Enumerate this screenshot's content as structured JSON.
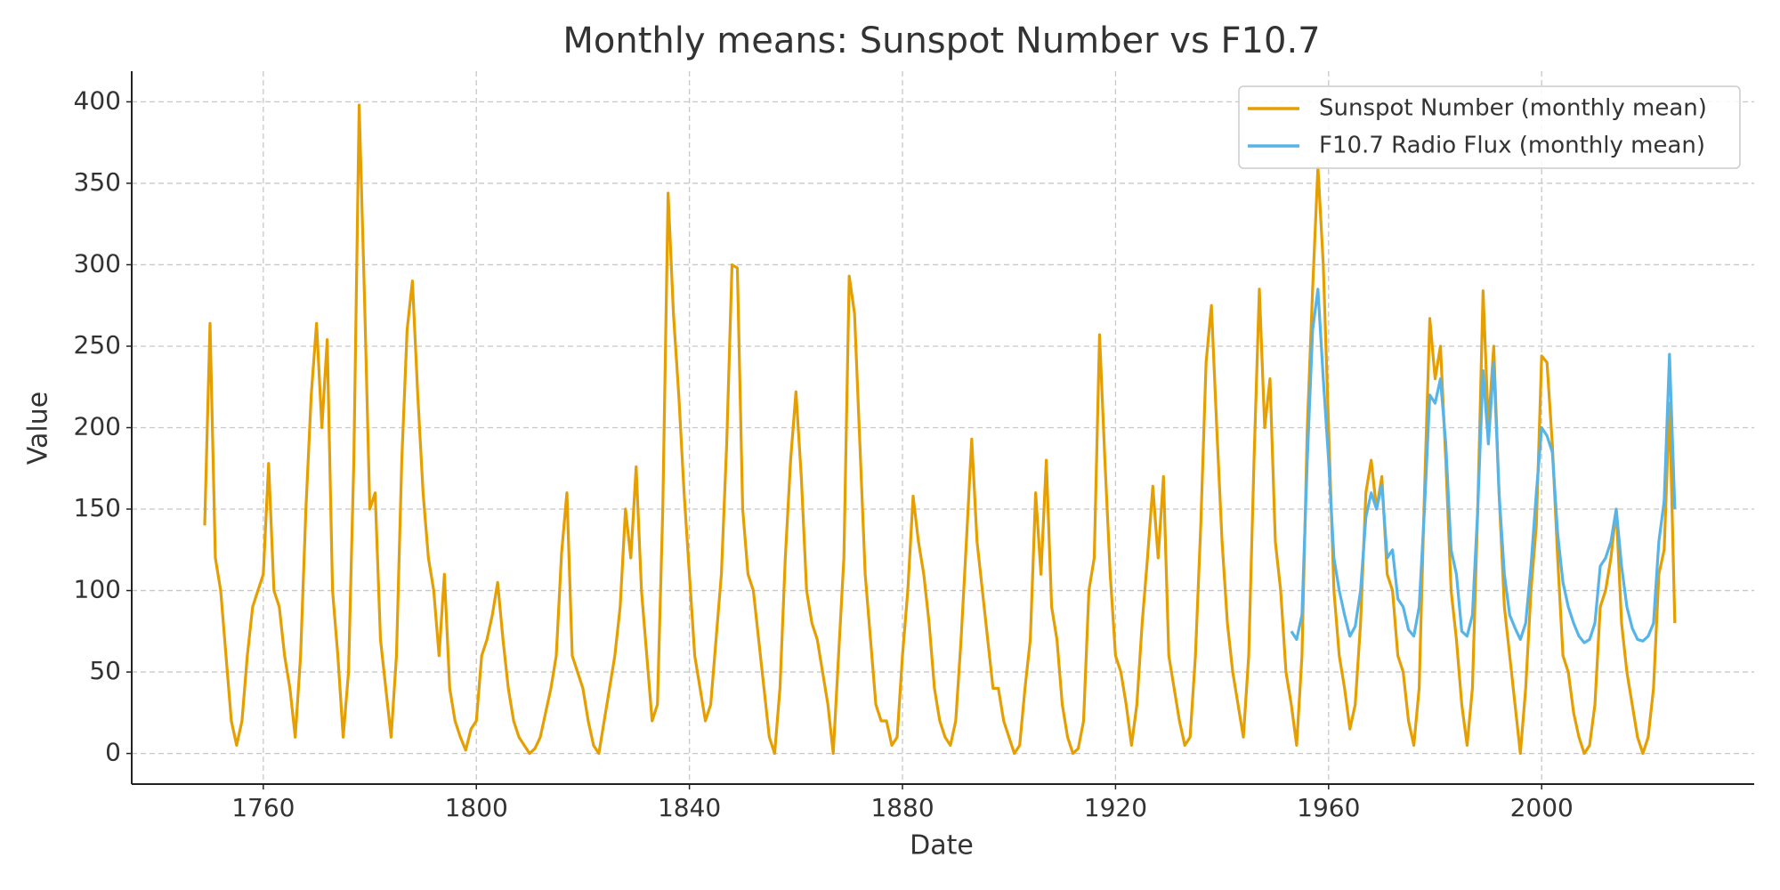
{
  "chart_data": {
    "type": "line",
    "title": "Monthly means: Sunspot Number vs F10.7",
    "x_label": "Date",
    "y_label": "Value",
    "xlim": [
      1735.3,
      2039.9
    ],
    "ylim": [
      -18.8,
      418.8
    ],
    "xticks": [
      1760,
      1800,
      1840,
      1880,
      1920,
      1960,
      2000
    ],
    "yticks": [
      0,
      50,
      100,
      150,
      200,
      250,
      300,
      350,
      400
    ],
    "grid": true,
    "legend": "upper right",
    "series": [
      {
        "name": "Sunspot Number (monthly mean)",
        "color": "#E69F00",
        "x": [
          1749,
          1750,
          1751,
          1752,
          1753,
          1754,
          1755,
          1756,
          1757,
          1758,
          1759,
          1760,
          1761,
          1762,
          1763,
          1764,
          1765,
          1766,
          1767,
          1768,
          1769,
          1770,
          1771,
          1772,
          1773,
          1774,
          1775,
          1776,
          1777,
          1778,
          1779,
          1780,
          1781,
          1782,
          1783,
          1784,
          1785,
          1786,
          1787,
          1788,
          1789,
          1790,
          1791,
          1792,
          1793,
          1794,
          1795,
          1796,
          1797,
          1798,
          1799,
          1800,
          1801,
          1802,
          1803,
          1804,
          1805,
          1806,
          1807,
          1808,
          1809,
          1810,
          1811,
          1812,
          1813,
          1814,
          1815,
          1816,
          1817,
          1818,
          1819,
          1820,
          1821,
          1822,
          1823,
          1824,
          1825,
          1826,
          1827,
          1828,
          1829,
          1830,
          1831,
          1832,
          1833,
          1834,
          1835,
          1836,
          1837,
          1838,
          1839,
          1840,
          1841,
          1842,
          1843,
          1844,
          1845,
          1846,
          1847,
          1848,
          1849,
          1850,
          1851,
          1852,
          1853,
          1854,
          1855,
          1856,
          1857,
          1858,
          1859,
          1860,
          1861,
          1862,
          1863,
          1864,
          1865,
          1866,
          1867,
          1868,
          1869,
          1870,
          1871,
          1872,
          1873,
          1874,
          1875,
          1876,
          1877,
          1878,
          1879,
          1880,
          1881,
          1882,
          1883,
          1884,
          1885,
          1886,
          1887,
          1888,
          1889,
          1890,
          1891,
          1892,
          1893,
          1894,
          1895,
          1896,
          1897,
          1898,
          1899,
          1900,
          1901,
          1902,
          1903,
          1904,
          1905,
          1906,
          1907,
          1908,
          1909,
          1910,
          1911,
          1912,
          1913,
          1914,
          1915,
          1916,
          1917,
          1918,
          1919,
          1920,
          1921,
          1922,
          1923,
          1924,
          1925,
          1926,
          1927,
          1928,
          1929,
          1930,
          1931,
          1932,
          1933,
          1934,
          1935,
          1936,
          1937,
          1938,
          1939,
          1940,
          1941,
          1942,
          1943,
          1944,
          1945,
          1946,
          1947,
          1948,
          1949,
          1950,
          1951,
          1952,
          1953,
          1954,
          1955,
          1956,
          1957,
          1958,
          1959,
          1960,
          1961,
          1962,
          1963,
          1964,
          1965,
          1966,
          1967,
          1968,
          1969,
          1970,
          1971,
          1972,
          1973,
          1974,
          1975,
          1976,
          1977,
          1978,
          1979,
          1980,
          1981,
          1982,
          1983,
          1984,
          1985,
          1986,
          1987,
          1988,
          1989,
          1990,
          1991,
          1992,
          1993,
          1994,
          1995,
          1996,
          1997,
          1998,
          1999,
          2000,
          2001,
          2002,
          2003,
          2004,
          2005,
          2006,
          2007,
          2008,
          2009,
          2010,
          2011,
          2012,
          2013,
          2014,
          2015,
          2016,
          2017,
          2018,
          2019,
          2020,
          2021,
          2022,
          2023,
          2024,
          2025
        ],
        "values": [
          140,
          264,
          120,
          100,
          60,
          20,
          5,
          20,
          60,
          90,
          100,
          110,
          178,
          100,
          90,
          60,
          40,
          10,
          60,
          150,
          220,
          264,
          200,
          254,
          100,
          60,
          10,
          50,
          180,
          398,
          280,
          150,
          160,
          70,
          40,
          10,
          60,
          180,
          260,
          290,
          220,
          160,
          120,
          100,
          60,
          110,
          40,
          20,
          10,
          2,
          15,
          20,
          60,
          70,
          85,
          105,
          70,
          40,
          20,
          10,
          5,
          0,
          3,
          10,
          25,
          40,
          60,
          123,
          160,
          60,
          50,
          40,
          20,
          5,
          0,
          20,
          40,
          60,
          90,
          150,
          120,
          176,
          100,
          60,
          20,
          30,
          150,
          344,
          270,
          220,
          160,
          110,
          60,
          40,
          20,
          30,
          70,
          110,
          190,
          300,
          298,
          150,
          110,
          100,
          70,
          40,
          10,
          0,
          40,
          120,
          180,
          222,
          170,
          100,
          80,
          70,
          50,
          30,
          0,
          60,
          120,
          293,
          270,
          190,
          110,
          70,
          30,
          20,
          20,
          5,
          10,
          60,
          100,
          158,
          130,
          110,
          80,
          40,
          20,
          10,
          5,
          20,
          70,
          130,
          193,
          130,
          100,
          70,
          40,
          40,
          20,
          10,
          0,
          5,
          40,
          70,
          160,
          110,
          180,
          90,
          70,
          30,
          10,
          0,
          3,
          20,
          100,
          120,
          257,
          180,
          110,
          60,
          50,
          30,
          5,
          30,
          80,
          120,
          164,
          120,
          170,
          60,
          40,
          20,
          5,
          10,
          60,
          140,
          240,
          275,
          200,
          130,
          80,
          50,
          30,
          10,
          60,
          180,
          285,
          200,
          230,
          130,
          100,
          50,
          30,
          5,
          60,
          200,
          285,
          360,
          300,
          200,
          100,
          60,
          40,
          15,
          30,
          80,
          160,
          180,
          150,
          170,
          110,
          100,
          60,
          50,
          20,
          5,
          40,
          160,
          267,
          230,
          250,
          180,
          100,
          70,
          30,
          5,
          40,
          150,
          284,
          200,
          250,
          160,
          90,
          60,
          30,
          0,
          40,
          100,
          140,
          244,
          240,
          190,
          120,
          60,
          50,
          25,
          10,
          0,
          5,
          30,
          90,
          100,
          120,
          150,
          80,
          50,
          30,
          10,
          0,
          10,
          40,
          110,
          125,
          215,
          80
        ]
      },
      {
        "name": "F10.7 Radio Flux (monthly mean)",
        "color": "#56B4E9",
        "x": [
          1953,
          1954,
          1955,
          1956,
          1957,
          1958,
          1959,
          1960,
          1961,
          1962,
          1963,
          1964,
          1965,
          1966,
          1967,
          1968,
          1969,
          1970,
          1971,
          1972,
          1973,
          1974,
          1975,
          1976,
          1977,
          1978,
          1979,
          1980,
          1981,
          1982,
          1983,
          1984,
          1985,
          1986,
          1987,
          1988,
          1989,
          1990,
          1991,
          1992,
          1993,
          1994,
          1995,
          1996,
          1997,
          1998,
          1999,
          2000,
          2001,
          2002,
          2003,
          2004,
          2005,
          2006,
          2007,
          2008,
          2009,
          2010,
          2011,
          2012,
          2013,
          2014,
          2015,
          2016,
          2017,
          2018,
          2019,
          2020,
          2021,
          2022,
          2023,
          2024,
          2025
        ],
        "values": [
          75,
          70,
          85,
          180,
          260,
          285,
          230,
          180,
          120,
          100,
          85,
          72,
          78,
          100,
          145,
          160,
          150,
          165,
          120,
          125,
          95,
          90,
          76,
          72,
          90,
          150,
          220,
          215,
          230,
          190,
          125,
          110,
          75,
          72,
          85,
          150,
          235,
          190,
          240,
          160,
          110,
          85,
          77,
          70,
          80,
          115,
          160,
          200,
          195,
          185,
          135,
          105,
          90,
          80,
          72,
          68,
          70,
          80,
          115,
          120,
          130,
          150,
          115,
          90,
          77,
          70,
          69,
          72,
          80,
          130,
          155,
          245,
          150
        ]
      }
    ]
  }
}
